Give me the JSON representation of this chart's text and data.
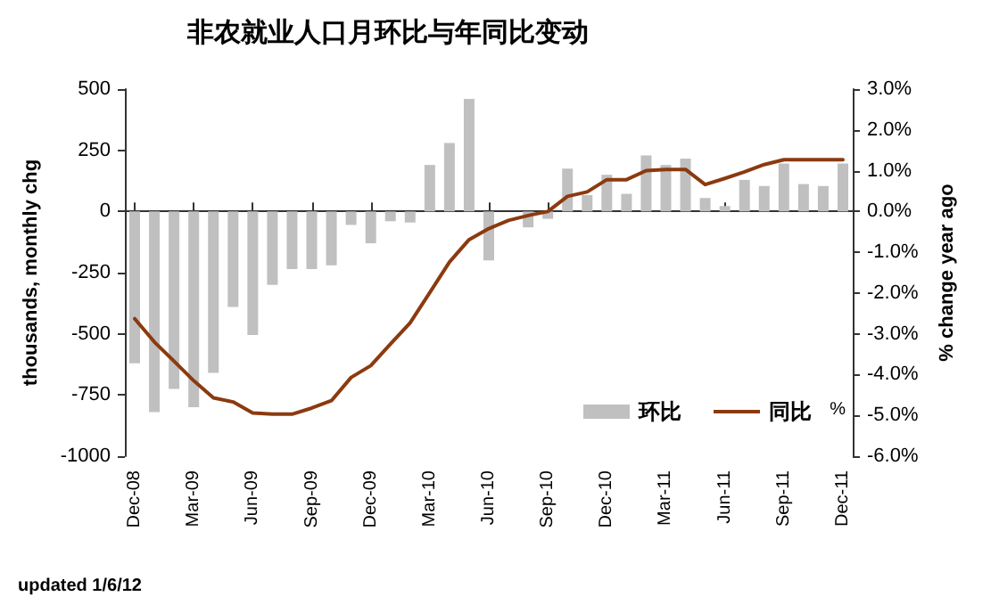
{
  "chart_data": {
    "type": "bar",
    "title": "非农就业人口月环比与年同比变动",
    "categories": [
      "Dec-08",
      null,
      null,
      "Mar-09",
      null,
      null,
      "Jun-09",
      null,
      null,
      "Sep-09",
      null,
      null,
      "Dec-09",
      null,
      null,
      "Mar-10",
      null,
      null,
      "Jun-10",
      null,
      null,
      "Sep-10",
      null,
      null,
      "Dec-10",
      null,
      null,
      "Mar-11",
      null,
      null,
      "Jun-11",
      null,
      null,
      "Sep-11",
      null,
      null,
      "Dec-11"
    ],
    "series": [
      {
        "name": "环比",
        "color": "#c0c0c0",
        "values": [
          -620,
          -820,
          -725,
          -800,
          -660,
          -390,
          -505,
          -300,
          -235,
          -235,
          -220,
          -55,
          -130,
          -40,
          -45,
          190,
          280,
          460,
          -200,
          null,
          -65,
          -30,
          175,
          67,
          150,
          72,
          229,
          190,
          216,
          55,
          22,
          129,
          104,
          196,
          112,
          104,
          196
        ]
      },
      {
        "name": "同比",
        "type": "line",
        "axis": "y2",
        "color": "#8b3a0f",
        "values": [
          -2.63,
          -3.2,
          -3.67,
          -4.15,
          -4.57,
          -4.67,
          -4.94,
          -4.97,
          -4.97,
          -4.82,
          -4.64,
          -4.07,
          -3.78,
          -3.25,
          -2.73,
          -1.99,
          -1.24,
          -0.69,
          -0.42,
          -0.22,
          -0.1,
          0.0,
          0.37,
          0.48,
          0.78,
          0.78,
          1.0,
          1.03,
          1.03,
          0.66,
          0.81,
          0.97,
          1.15,
          1.27,
          1.27,
          1.27,
          1.27
        ]
      }
    ],
    "ylabel": "thousands, monthly chg",
    "y2label": "% change year ago",
    "ylim": [
      -1000,
      500
    ],
    "yticks": [
      -1000,
      -750,
      -500,
      -250,
      0,
      250,
      500
    ],
    "y2lim": [
      -6,
      3
    ],
    "y2ticks": [
      {
        "value": -6,
        "label": "-6.0%"
      },
      {
        "value": -5,
        "label": "-5.0%"
      },
      {
        "value": -4,
        "label": "-4.0%"
      },
      {
        "value": -3,
        "label": "-3.0%"
      },
      {
        "value": -2,
        "label": "-2.0%"
      },
      {
        "value": -1,
        "label": "-1.0%"
      },
      {
        "value": 0,
        "label": "0.0%"
      },
      {
        "value": 1,
        "label": "1.0%"
      },
      {
        "value": 2,
        "label": "2.0%"
      },
      {
        "value": 3,
        "label": "3.0%"
      }
    ],
    "annotations": [
      "%",
      "updated 1/6/12"
    ],
    "legend": "bottom right",
    "marker": "none",
    "line_style": "solid"
  }
}
